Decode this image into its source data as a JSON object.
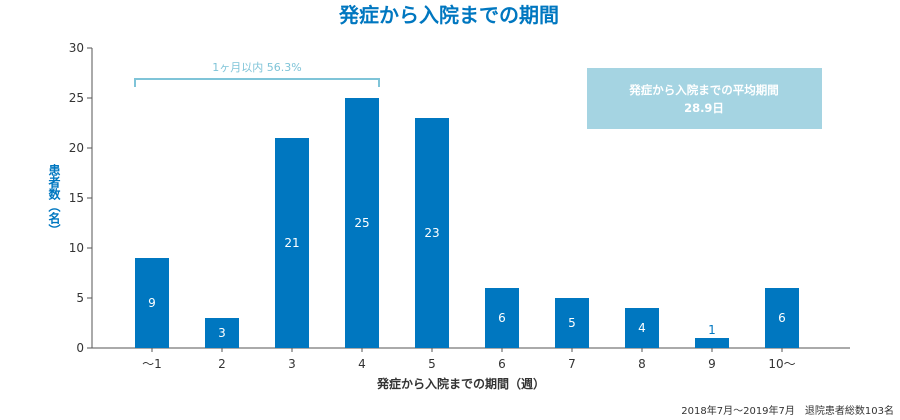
{
  "chart_data": {
    "type": "bar",
    "title": "発症から入院までの期間",
    "categories": [
      "〜1",
      "2",
      "3",
      "4",
      "5",
      "6",
      "7",
      "8",
      "9",
      "10〜"
    ],
    "values": [
      9,
      3,
      21,
      25,
      23,
      6,
      5,
      4,
      1,
      6
    ],
    "xlabel": "発症から入院までの期間（週）",
    "ylabel": "患者数（名）",
    "ylim": [
      0,
      30
    ],
    "yticks": [
      0,
      5,
      10,
      15,
      20,
      25,
      30
    ],
    "grid": false,
    "bar_color": "#0077c0",
    "bracket": {
      "text": "1ヶ月以内 56.3%",
      "from_category": "〜1",
      "to_category": "4",
      "color": "#7fc4d8"
    },
    "note": {
      "line1": "発症から入院までの平均期間",
      "line2": "28.9日",
      "background": "#a5d4e2"
    },
    "footnote": "2018年7月〜2019年7月　退院患者総数103名"
  }
}
